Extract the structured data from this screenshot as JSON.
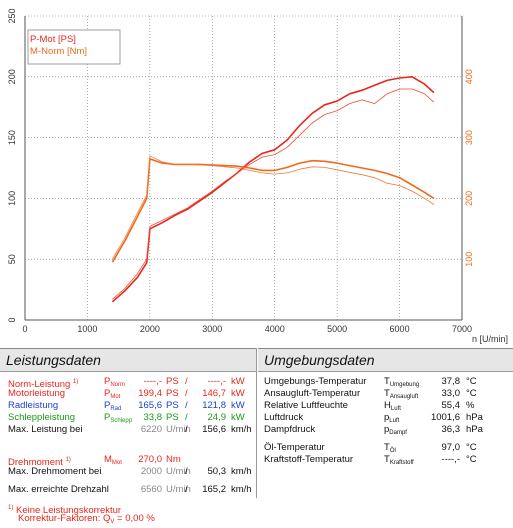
{
  "chart_data": {
    "type": "line",
    "xlabel": "n [U/min]",
    "xlim": [
      0,
      7000
    ],
    "xticks": [
      0,
      1000,
      2000,
      3000,
      4000,
      5000,
      6000,
      7000
    ],
    "ylim_left": [
      0,
      250
    ],
    "yticks_left": [
      0,
      50,
      100,
      150,
      200,
      250
    ],
    "ylim_right": [
      0,
      500
    ],
    "yticks_right": [
      100,
      200,
      300,
      400
    ],
    "legend": [
      "P-Mot [PS]",
      "M-Norm [Nm]"
    ],
    "legend_position": "top-left",
    "grid": true,
    "series": [
      {
        "name": "P-Mot [PS]",
        "axis": "left",
        "color": "#e8261c",
        "width": 1.6,
        "x": [
          1400,
          1600,
          1800,
          1950,
          2000,
          2200,
          2400,
          2600,
          2800,
          3000,
          3200,
          3400,
          3600,
          3800,
          4000,
          4200,
          4400,
          4600,
          4800,
          5000,
          5200,
          5400,
          5600,
          5800,
          6000,
          6200,
          6400,
          6550
        ],
        "y": [
          15,
          24,
          35,
          47,
          75,
          80,
          86,
          91,
          98,
          105,
          113,
          121,
          130,
          137,
          140,
          148,
          160,
          170,
          177,
          180,
          186,
          189,
          193,
          197,
          199,
          200,
          194,
          187
        ]
      },
      {
        "name": "P-Mot thin",
        "axis": "left",
        "color": "#f04a3a",
        "width": 0.8,
        "x": [
          1400,
          1600,
          1800,
          1950,
          2000,
          2200,
          2400,
          2600,
          2800,
          3000,
          3200,
          3400,
          3600,
          3800,
          4000,
          4200,
          4400,
          4600,
          4800,
          5000,
          5200,
          5400,
          5600,
          5800,
          6000,
          6200,
          6400,
          6550
        ],
        "y": [
          17,
          26,
          38,
          50,
          77,
          82,
          87,
          92,
          99,
          106,
          114,
          121,
          128,
          134,
          136,
          142,
          152,
          162,
          169,
          172,
          178,
          181,
          178,
          186,
          190,
          190,
          186,
          179
        ]
      },
      {
        "name": "M-Norm [Nm]",
        "axis": "right",
        "color": "#f06a1a",
        "width": 1.6,
        "x": [
          1400,
          1600,
          1800,
          1950,
          2000,
          2200,
          2400,
          2600,
          2800,
          3000,
          3200,
          3400,
          3600,
          3800,
          4000,
          4200,
          4400,
          4600,
          4800,
          5000,
          5200,
          5400,
          5600,
          5800,
          6000,
          6200,
          6400,
          6550
        ],
        "y": [
          95,
          130,
          170,
          200,
          265,
          258,
          256,
          256,
          256,
          255,
          254,
          253,
          250,
          246,
          246,
          251,
          258,
          262,
          261,
          258,
          254,
          250,
          246,
          241,
          234,
          222,
          210,
          200
        ]
      },
      {
        "name": "M-Norm thin",
        "axis": "right",
        "color": "#f07a3a",
        "width": 0.8,
        "x": [
          1400,
          1600,
          1800,
          1950,
          2000,
          2200,
          2400,
          2600,
          2800,
          3000,
          3200,
          3400,
          3600,
          3800,
          4000,
          4200,
          4400,
          4600,
          4800,
          5000,
          5200,
          5400,
          5600,
          5800,
          6000,
          6200,
          6400,
          6550
        ],
        "y": [
          100,
          135,
          176,
          205,
          270,
          260,
          256,
          256,
          255,
          254,
          252,
          250,
          246,
          242,
          240,
          242,
          248,
          252,
          251,
          247,
          243,
          239,
          234,
          225,
          221,
          212,
          200,
          190
        ]
      }
    ]
  },
  "leistung": {
    "title": "Leistungsdaten",
    "rows": [
      {
        "label": "Norm-Leistung ",
        "sup": "1)",
        "sym": "P",
        "sub": "Norm",
        "v1": "----,-",
        "u1": "PS",
        "slash": "/",
        "v2": "----,-",
        "u2": "kW",
        "color": "red",
        "v1gray": false
      },
      {
        "label": "Motorleistung",
        "sup": "",
        "sym": "P",
        "sub": "Mot",
        "v1": "199,4",
        "u1": "PS",
        "slash": "/",
        "v2": "146,7",
        "u2": "kW",
        "color": "red",
        "v1gray": false
      },
      {
        "label": "Radleistung",
        "sup": "",
        "sym": "P",
        "sub": "Rad",
        "v1": "165,6",
        "u1": "PS",
        "slash": "/",
        "v2": "121,8",
        "u2": "kW",
        "color": "blue",
        "v1gray": false
      },
      {
        "label": "Schleppleistung",
        "sup": "",
        "sym": "P",
        "sub": "Schlepp",
        "v1": "33,8",
        "u1": "PS",
        "slash": "/",
        "v2": "24,9",
        "u2": "kW",
        "color": "green",
        "v1gray": false
      },
      {
        "label": "Max. Leistung bei",
        "sup": "",
        "sym": "",
        "sub": "",
        "v1": "6220",
        "u1": "U/min",
        "slash": "/",
        "v2": "156,6",
        "u2": "km/h",
        "color": "",
        "v1gray": true
      },
      {
        "label": "Drehmoment ",
        "sup": "1)",
        "sym": "M",
        "sub": "Mot",
        "v1": "270,0",
        "u1": "Nm",
        "slash": "",
        "v2": "",
        "u2": "",
        "color": "red",
        "v1gray": false
      },
      {
        "label": "Max. Drehmoment bei",
        "sup": "",
        "sym": "",
        "sub": "",
        "v1": "2000",
        "u1": "U/min",
        "slash": "/",
        "v2": "50,3",
        "u2": "km/h",
        "color": "",
        "v1gray": true
      },
      {
        "label": "Max. erreichte Drehzahl",
        "sup": "",
        "sym": "",
        "sub": "",
        "v1": "6560",
        "u1": "U/min",
        "slash": "/",
        "v2": "165,2",
        "u2": "km/h",
        "color": "",
        "v1gray": true
      }
    ],
    "footnote_mark": "1)",
    "footnote_line1": " Keine Leistungskorrektur",
    "footnote_line2": "Korrektur-Faktoren: Q",
    "footnote_sub": "V",
    "footnote_tail": " =   0,00 %"
  },
  "umgebung": {
    "title": "Umgebungsdaten",
    "rows": [
      {
        "label": "Umgebungs-Temperatur",
        "sym": "T",
        "sub": "Umgebung",
        "val": "37,8",
        "unit": "°C"
      },
      {
        "label": "Ansaugluft-Temperatur",
        "sym": "T",
        "sub": "Ansaugluft",
        "val": "33,0",
        "unit": "°C"
      },
      {
        "label": "Relative Luftfeuchte",
        "sym": "H",
        "sub": "Luft",
        "val": "55,4",
        "unit": "%"
      },
      {
        "label": "Luftdruck",
        "sym": "p",
        "sub": "Luft",
        "val": "1001,6",
        "unit": "hPa"
      },
      {
        "label": "Dampfdruck",
        "sym": "p",
        "sub": "Dampf",
        "val": "36,3",
        "unit": "hPa"
      },
      {
        "label": "Öl-Temperatur",
        "sym": "T",
        "sub": "Öl",
        "val": "97,0",
        "unit": "°C"
      },
      {
        "label": "Kraftstoff-Temperatur",
        "sym": "T",
        "sub": "Kraftstoff",
        "val": "----,-",
        "unit": "°C"
      }
    ]
  }
}
